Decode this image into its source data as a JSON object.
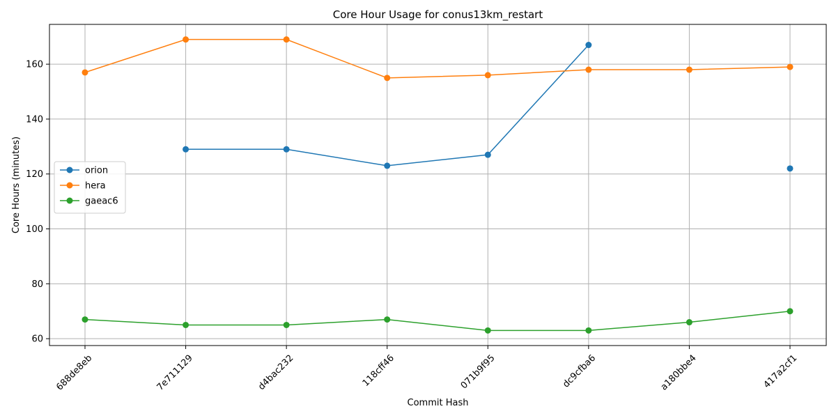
{
  "chart_data": {
    "type": "line",
    "title": "Core Hour Usage for conus13km_restart",
    "xlabel": "Commit Hash",
    "ylabel": "Core Hours (minutes)",
    "categories": [
      "688de8eb",
      "7e711129",
      "d4bac232",
      "118cff46",
      "071b9f95",
      "dc9cfba6",
      "a180bbe4",
      "417a2cf1"
    ],
    "ylim": [
      57.5,
      174.5
    ],
    "yticks": [
      60,
      80,
      100,
      120,
      140,
      160
    ],
    "grid": true,
    "legend_position": "center-left",
    "series": [
      {
        "name": "orion",
        "color": "#1f77b4",
        "values": [
          null,
          129,
          129,
          123,
          127,
          167,
          null,
          122
        ]
      },
      {
        "name": "hera",
        "color": "#ff7f0e",
        "values": [
          157,
          169,
          169,
          155,
          156,
          158,
          158,
          159
        ]
      },
      {
        "name": "gaeac6",
        "color": "#2ca02c",
        "values": [
          67,
          65,
          65,
          67,
          63,
          63,
          66,
          70
        ]
      }
    ]
  }
}
